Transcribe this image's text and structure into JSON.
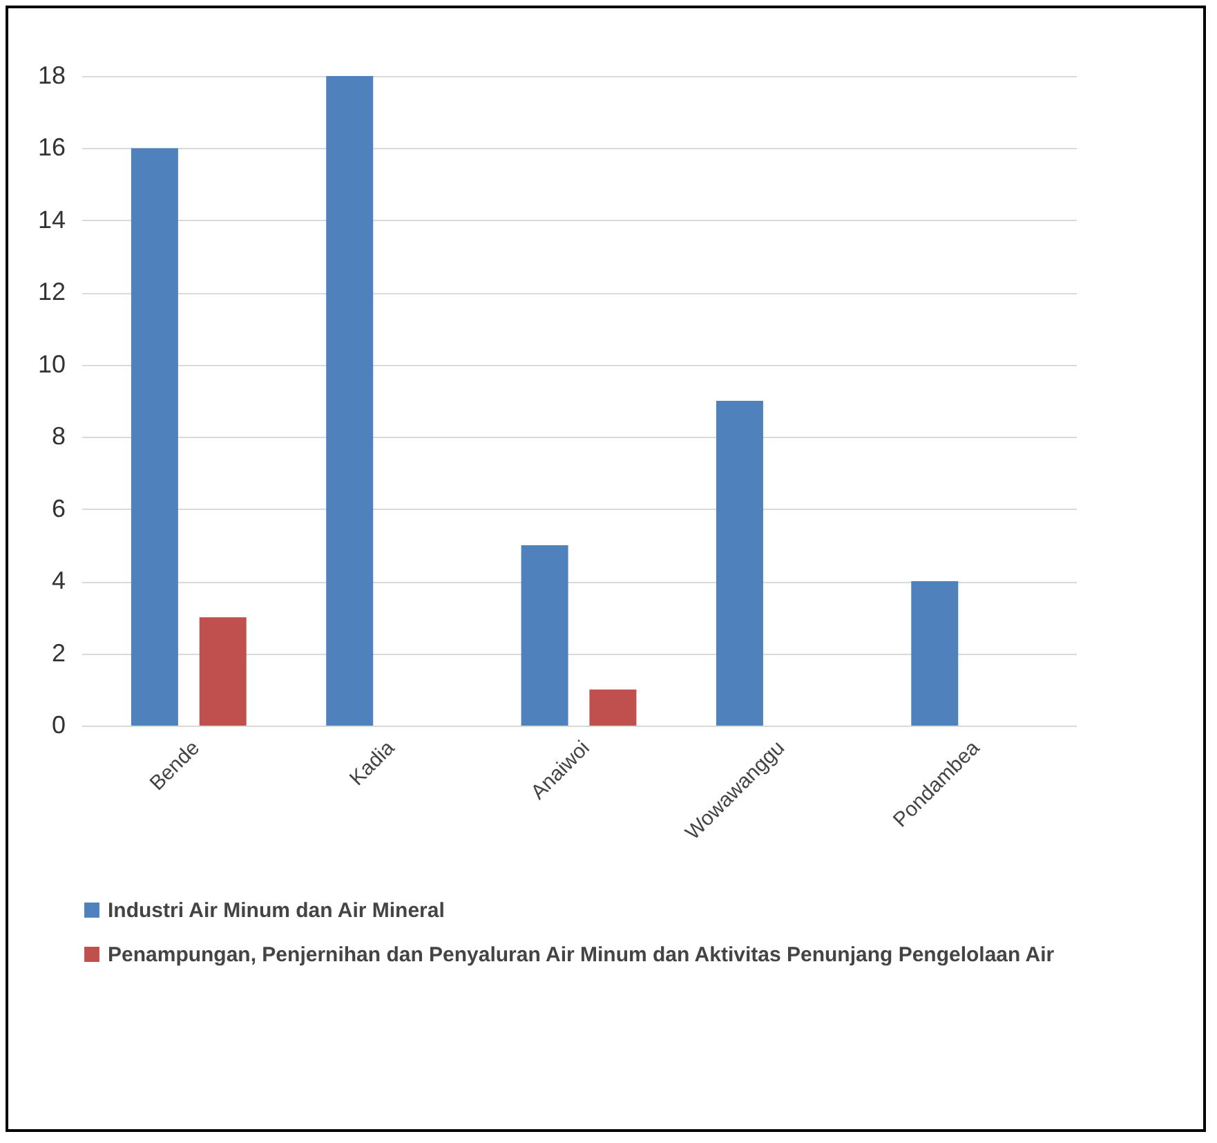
{
  "chart_data": {
    "type": "bar",
    "categories": [
      "Bende",
      "Kadia",
      "Anaiwoi",
      "Wowawanggu",
      "Pondambea"
    ],
    "series": [
      {
        "name": "Industri Air Minum dan Air Mineral",
        "color": "#4f81bd",
        "values": [
          16,
          18,
          5,
          9,
          4
        ]
      },
      {
        "name": "Penampungan, Penjernihan dan Penyaluran Air Minum dan Aktivitas Penunjang Pengelolaan Air",
        "color": "#c0504d",
        "values": [
          3,
          0,
          1,
          0,
          0
        ]
      }
    ],
    "ylim": [
      0,
      18
    ],
    "yticks": [
      0,
      2,
      4,
      6,
      8,
      10,
      12,
      14,
      16,
      18
    ],
    "grid": "y",
    "legend": "bottom left"
  }
}
